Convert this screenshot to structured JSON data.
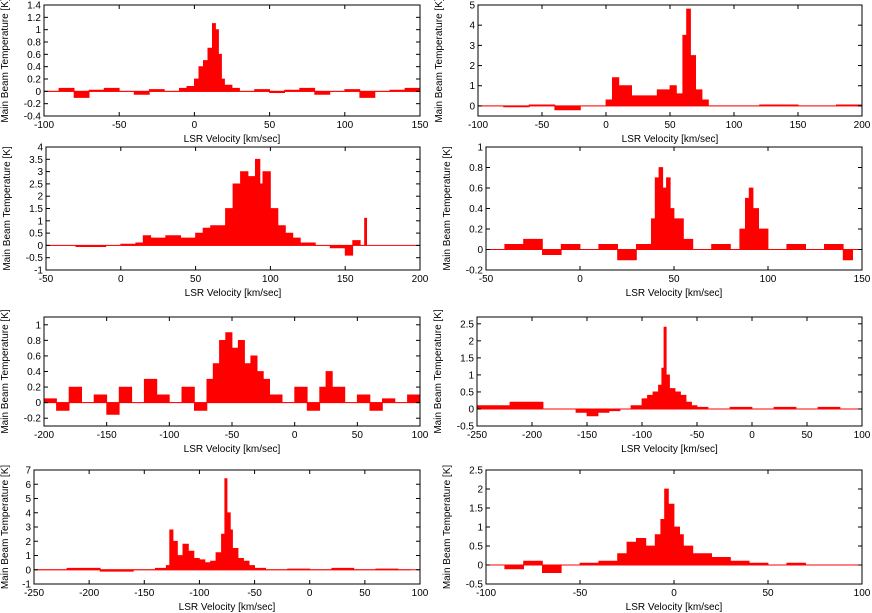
{
  "chart_data": [
    {
      "type": "area",
      "xlabel": "LSR Velocity [km/sec]",
      "ylabel": "Main Beam Temperature [K]",
      "xlim": [
        -100,
        150
      ],
      "ylim": [
        -0.4,
        1.4
      ],
      "xticks": [
        "-100",
        "-50",
        "0",
        "50",
        "100",
        "150"
      ],
      "yticks": [
        "-0.4",
        "-0.2",
        "0",
        "0.2",
        "0.4",
        "0.6",
        "0.8",
        "1",
        "1.2",
        "1.4"
      ],
      "color": "#ff0000",
      "series": [
        {
          "x": [
            -100,
            -90,
            -80,
            -70,
            -60,
            -50,
            -40,
            -30,
            -20,
            -10,
            -5,
            0,
            3,
            6,
            9,
            12,
            14,
            16,
            18,
            20,
            25,
            30,
            40,
            50,
            60,
            70,
            80,
            90,
            100,
            110,
            120,
            130,
            140,
            150
          ],
          "values": [
            0.0,
            0.05,
            -0.1,
            0.02,
            0.05,
            0.0,
            -0.05,
            0.03,
            0.0,
            0.05,
            0.08,
            0.2,
            0.4,
            0.5,
            0.7,
            1.1,
            1.0,
            0.6,
            0.2,
            0.1,
            0.05,
            0.0,
            0.03,
            -0.02,
            0.02,
            0.05,
            -0.05,
            0.0,
            0.03,
            -0.1,
            0.0,
            0.02,
            0.05,
            0.0
          ]
        }
      ]
    },
    {
      "type": "area",
      "xlabel": "LSR Velocity [km/sec]",
      "ylabel": "Main Beam Temperature [K]",
      "xlim": [
        -100,
        200
      ],
      "ylim": [
        -0.5,
        5
      ],
      "xticks": [
        "-100",
        "-50",
        "0",
        "50",
        "100",
        "150",
        "200"
      ],
      "yticks": [
        "0",
        "1",
        "2",
        "3",
        "4",
        "5"
      ],
      "color": "#ff0000",
      "series": [
        {
          "x": [
            -100,
            -80,
            -60,
            -40,
            -20,
            0,
            5,
            10,
            20,
            30,
            40,
            50,
            55,
            60,
            63,
            66,
            70,
            75,
            80,
            100,
            120,
            150,
            180,
            200
          ],
          "values": [
            0.0,
            -0.05,
            0.05,
            -0.2,
            0.0,
            0.3,
            1.4,
            1.0,
            0.5,
            0.5,
            0.8,
            1.0,
            0.6,
            3.5,
            4.8,
            2.5,
            0.8,
            0.3,
            0.0,
            0.0,
            0.05,
            0.0,
            0.05,
            0.0
          ]
        }
      ]
    },
    {
      "type": "area",
      "xlabel": "LSR Velocity [km/sec]",
      "ylabel": "Main Beam Temperature [K]",
      "xlim": [
        -50,
        200
      ],
      "ylim": [
        -1,
        4
      ],
      "xticks": [
        "-50",
        "0",
        "50",
        "100",
        "150",
        "200"
      ],
      "yticks": [
        "-1",
        "-0.5",
        "0",
        "0.5",
        "1",
        "1.5",
        "2",
        "2.5",
        "3",
        "3.5",
        "4"
      ],
      "color": "#ff0000",
      "series": [
        {
          "x": [
            -50,
            -30,
            -10,
            0,
            10,
            15,
            20,
            30,
            40,
            50,
            55,
            60,
            70,
            75,
            80,
            85,
            90,
            93,
            95,
            100,
            105,
            110,
            115,
            120,
            130,
            140,
            150,
            155,
            160,
            163
          ],
          "values": [
            0.0,
            -0.05,
            0.0,
            0.05,
            0.1,
            0.4,
            0.3,
            0.4,
            0.3,
            0.5,
            0.7,
            0.8,
            1.5,
            2.5,
            3.0,
            2.8,
            3.5,
            2.5,
            3.0,
            1.5,
            0.8,
            0.5,
            0.3,
            0.1,
            0.0,
            -0.1,
            -0.4,
            0.2,
            0.0,
            1.1
          ]
        }
      ]
    },
    {
      "type": "area",
      "xlabel": "LSR Velocity [km/sec]",
      "ylabel": "Main Beam Temperature [K]",
      "xlim": [
        -50,
        150
      ],
      "ylim": [
        -0.2,
        1
      ],
      "xticks": [
        "-50",
        "0",
        "50",
        "100",
        "150"
      ],
      "yticks": [
        "-0.2",
        "0",
        "0.2",
        "0.4",
        "0.6",
        "0.8",
        "1"
      ],
      "color": "#ff0000",
      "series": [
        {
          "x": [
            -50,
            -40,
            -30,
            -20,
            -10,
            0,
            10,
            20,
            30,
            38,
            40,
            42,
            44,
            46,
            48,
            50,
            55,
            60,
            70,
            80,
            85,
            88,
            90,
            92,
            95,
            100,
            110,
            120,
            130,
            140,
            145
          ],
          "values": [
            0.0,
            0.05,
            0.1,
            -0.05,
            0.05,
            0.0,
            0.05,
            -0.1,
            0.05,
            0.3,
            0.7,
            0.8,
            0.6,
            0.7,
            0.4,
            0.3,
            0.1,
            0.0,
            0.05,
            0.0,
            0.2,
            0.5,
            0.6,
            0.4,
            0.2,
            0.0,
            0.05,
            0.0,
            0.05,
            -0.1,
            0.0
          ]
        }
      ]
    },
    {
      "type": "area",
      "xlabel": "LSR Velocity [km/sec]",
      "ylabel": "Main Beam Temperature [K]",
      "xlim": [
        -200,
        100
      ],
      "ylim": [
        -0.3,
        1.1
      ],
      "xticks": [
        "-200",
        "-150",
        "-100",
        "-50",
        "0",
        "50",
        "100"
      ],
      "yticks": [
        "-0.2",
        "0",
        "0.2",
        "0.4",
        "0.6",
        "0.8",
        "1"
      ],
      "color": "#ff0000",
      "series": [
        {
          "x": [
            -200,
            -190,
            -180,
            -170,
            -160,
            -150,
            -140,
            -130,
            -120,
            -110,
            -100,
            -90,
            -80,
            -70,
            -65,
            -60,
            -55,
            -50,
            -45,
            -40,
            -35,
            -30,
            -25,
            -20,
            -10,
            0,
            10,
            20,
            25,
            30,
            40,
            50,
            60,
            70,
            80,
            90,
            100
          ],
          "values": [
            0.05,
            -0.1,
            0.2,
            0.0,
            0.1,
            -0.15,
            0.2,
            0.0,
            0.3,
            0.1,
            0.0,
            0.2,
            -0.1,
            0.3,
            0.5,
            0.8,
            0.9,
            0.7,
            0.8,
            0.5,
            0.6,
            0.4,
            0.3,
            0.1,
            0.0,
            0.2,
            -0.1,
            0.2,
            0.4,
            0.2,
            0.0,
            0.1,
            -0.1,
            0.05,
            0.0,
            0.1,
            0.0
          ]
        }
      ]
    },
    {
      "type": "area",
      "xlabel": "LSR Velocity [km/sec]",
      "ylabel": "Main Beam Temperature [K]",
      "xlim": [
        -250,
        100
      ],
      "ylim": [
        -0.5,
        2.7
      ],
      "xticks": [
        "-250",
        "-200",
        "-150",
        "-100",
        "-50",
        "0",
        "50",
        "100"
      ],
      "yticks": [
        "-0.5",
        "0",
        "0.5",
        "1",
        "1.5",
        "2",
        "2.5"
      ],
      "color": "#ff0000",
      "series": [
        {
          "x": [
            -250,
            -220,
            -190,
            -160,
            -150,
            -140,
            -130,
            -120,
            -110,
            -100,
            -95,
            -90,
            -85,
            -82,
            -80,
            -78,
            -75,
            -70,
            -65,
            -60,
            -55,
            -50,
            -40,
            -20,
            0,
            20,
            40,
            60,
            80,
            100
          ],
          "values": [
            0.1,
            0.2,
            0.0,
            -0.1,
            -0.2,
            -0.1,
            -0.05,
            0.0,
            0.1,
            0.3,
            0.4,
            0.5,
            0.7,
            1.2,
            2.4,
            1.0,
            0.6,
            0.5,
            0.4,
            0.2,
            0.1,
            0.05,
            0.0,
            0.05,
            0.0,
            0.05,
            0.0,
            0.05,
            0.0,
            0.1
          ]
        }
      ]
    },
    {
      "type": "area",
      "xlabel": "LSR Velocity [km/sec]",
      "ylabel": "Main Beam Temperature [K]",
      "xlim": [
        -250,
        100
      ],
      "ylim": [
        -1,
        7
      ],
      "xticks": [
        "-250",
        "-200",
        "-150",
        "-100",
        "-50",
        "0",
        "50",
        "100"
      ],
      "yticks": [
        "-1",
        "0",
        "1",
        "2",
        "3",
        "4",
        "5",
        "6",
        "7"
      ],
      "color": "#ff0000",
      "series": [
        {
          "x": [
            -250,
            -220,
            -190,
            -160,
            -140,
            -130,
            -127,
            -124,
            -120,
            -115,
            -110,
            -105,
            -100,
            -95,
            -90,
            -85,
            -80,
            -77,
            -75,
            -72,
            -70,
            -65,
            -60,
            -55,
            -50,
            -40,
            -20,
            0,
            20,
            40,
            60,
            80,
            90
          ],
          "values": [
            0.0,
            0.1,
            -0.1,
            0.0,
            0.1,
            0.3,
            2.8,
            2.0,
            1.0,
            1.8,
            1.3,
            0.8,
            0.7,
            0.5,
            0.6,
            1.2,
            2.5,
            6.4,
            4.0,
            2.8,
            1.5,
            0.8,
            0.6,
            0.3,
            0.1,
            0.0,
            0.05,
            0.0,
            0.1,
            0.0,
            0.05,
            0.0,
            0.0
          ]
        }
      ]
    },
    {
      "type": "area",
      "xlabel": "LSR Velocity [km/sec]",
      "ylabel": "Main Beam Temperature [K]",
      "xlim": [
        -100,
        100
      ],
      "ylim": [
        -0.5,
        2.5
      ],
      "xticks": [
        "-100",
        "-50",
        "0",
        "50",
        "100"
      ],
      "yticks": [
        "-0.5",
        "0",
        "0.5",
        "1",
        "1.5",
        "2",
        "2.5"
      ],
      "color": "#ff0000",
      "series": [
        {
          "x": [
            -100,
            -90,
            -80,
            -70,
            -60,
            -50,
            -40,
            -30,
            -25,
            -20,
            -15,
            -10,
            -7,
            -5,
            -3,
            0,
            3,
            5,
            10,
            20,
            30,
            40,
            50,
            60,
            70
          ],
          "values": [
            0.0,
            -0.1,
            0.1,
            -0.2,
            0.0,
            0.05,
            0.1,
            0.3,
            0.6,
            0.7,
            0.5,
            0.8,
            1.2,
            2.0,
            1.6,
            1.0,
            0.8,
            0.5,
            0.3,
            0.2,
            0.1,
            0.05,
            0.0,
            0.05,
            0.0
          ]
        }
      ]
    }
  ]
}
